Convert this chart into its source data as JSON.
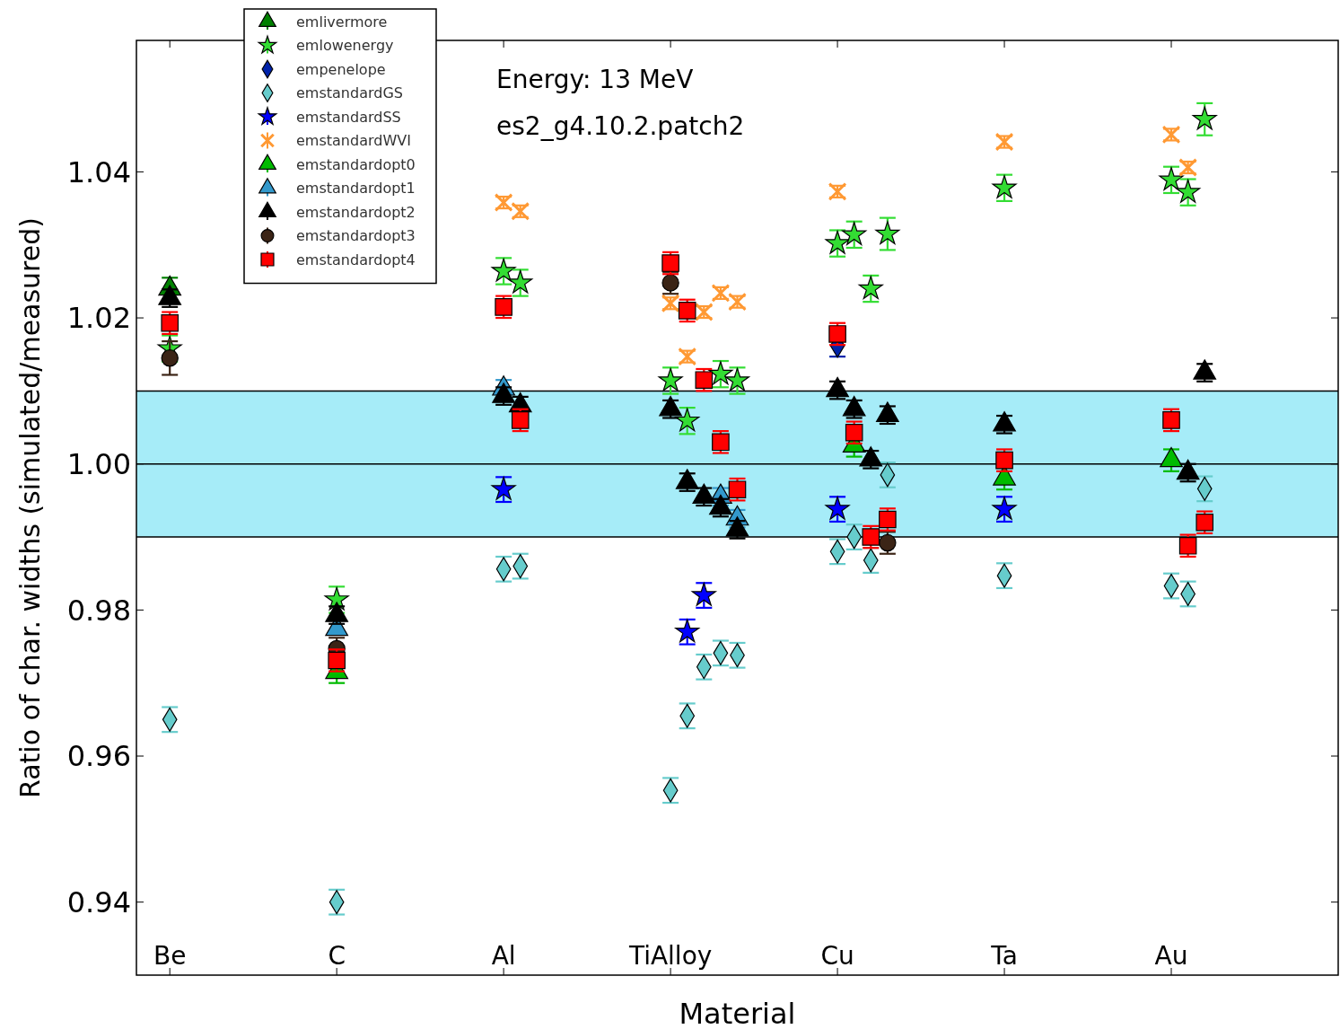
{
  "chart_data": {
    "type": "scatter",
    "annotations": [
      "Energy: 13 MeV",
      "es2_g4.10.2.patch2"
    ],
    "xlabel": "Material",
    "ylabel": "Ratio of char. widths (simulated/measured)",
    "categories": [
      "Be",
      null,
      null,
      null,
      null,
      null,
      null,
      null,
      null,
      null,
      "C",
      null,
      null,
      null,
      null,
      null,
      null,
      null,
      null,
      null,
      "Al",
      null,
      null,
      null,
      null,
      null,
      null,
      null,
      null,
      null,
      "TiAlloy",
      null,
      null,
      null,
      null,
      null,
      null,
      null,
      null,
      null,
      "Cu",
      null,
      null,
      null,
      null,
      null,
      null,
      null,
      null,
      null,
      "Ta",
      null,
      null,
      null,
      null,
      null,
      null,
      null,
      null,
      null,
      "Au",
      null,
      null
    ],
    "ylim": [
      0.93,
      1.058
    ],
    "yticks": [
      0.94,
      0.96,
      0.98,
      {
        "value": 1,
        "label": "1.00"
      },
      1.02,
      1.04
    ],
    "bands": [
      {
        "axis": "y",
        "from": 0.99,
        "to": 1.01,
        "color": "#a6ecf8"
      }
    ],
    "ref_lines": [
      {
        "axis": "y",
        "value": 0.99
      },
      {
        "axis": "y",
        "value": 1
      },
      {
        "axis": "y",
        "value": 1.01
      }
    ],
    "legend": "top left",
    "series": [
      {
        "name": "emlivermore",
        "color": "#008000",
        "marker": "triangle",
        "values": [
          1.024,
          null,
          null,
          null,
          null,
          null,
          null,
          null,
          null,
          null,
          null,
          null,
          null,
          null,
          null,
          null,
          null,
          null,
          null,
          null,
          null,
          null,
          null,
          null,
          null,
          null,
          null,
          null,
          null,
          null,
          null,
          null,
          null,
          null,
          null,
          null,
          null,
          null,
          null,
          null,
          null,
          null,
          null,
          null,
          null,
          null,
          null,
          null,
          null,
          null,
          null,
          null,
          null,
          null,
          null,
          null,
          null,
          null,
          null,
          null,
          null,
          null,
          null
        ],
        "errors": [
          0.0015,
          null,
          null,
          null,
          null,
          null,
          null,
          null,
          null,
          null,
          null,
          null,
          null,
          null,
          null,
          null,
          null,
          null,
          null,
          null,
          null,
          null,
          null,
          null,
          null,
          null,
          null,
          null,
          null,
          null,
          null,
          null,
          null,
          null,
          null,
          null,
          null,
          null,
          null,
          null,
          null,
          null,
          null,
          null,
          null,
          null,
          null,
          null,
          null,
          null,
          null,
          null,
          null,
          null,
          null,
          null,
          null,
          null,
          null,
          null,
          null,
          null,
          null
        ]
      },
      {
        "name": "emlowenergy",
        "color": "#33dd33",
        "marker": "star",
        "values": [
          1.0158,
          null,
          null,
          null,
          null,
          null,
          null,
          null,
          null,
          null,
          0.9814,
          null,
          null,
          null,
          null,
          null,
          null,
          null,
          null,
          null,
          1.0264,
          1.0248,
          null,
          null,
          null,
          null,
          null,
          null,
          null,
          null,
          1.0114,
          1.0059,
          null,
          1.0123,
          1.0114,
          null,
          null,
          null,
          null,
          null,
          1.0302,
          1.0314,
          1.024,
          1.0315,
          null,
          null,
          null,
          null,
          null,
          null,
          1.0378,
          null,
          null,
          null,
          null,
          null,
          null,
          null,
          null,
          null,
          1.0389,
          1.0372,
          1.0472
        ],
        "errors": [
          0.0018,
          null,
          null,
          null,
          null,
          null,
          null,
          null,
          null,
          null,
          0.0018,
          null,
          null,
          null,
          null,
          null,
          null,
          null,
          null,
          null,
          0.0018,
          0.0018,
          null,
          null,
          null,
          null,
          null,
          null,
          null,
          null,
          0.0018,
          0.0018,
          null,
          0.0018,
          0.0018,
          null,
          null,
          null,
          null,
          null,
          0.0018,
          0.0018,
          0.0018,
          0.0022,
          null,
          null,
          null,
          null,
          null,
          null,
          0.0018,
          null,
          null,
          null,
          null,
          null,
          null,
          null,
          null,
          null,
          0.0018,
          0.0018,
          0.0022
        ]
      },
      {
        "name": "empenelope",
        "color": "#0022aa",
        "marker": "diamond",
        "values": [
          null,
          null,
          null,
          null,
          null,
          null,
          null,
          null,
          null,
          null,
          null,
          null,
          null,
          null,
          null,
          null,
          null,
          null,
          null,
          null,
          null,
          null,
          null,
          null,
          null,
          null,
          null,
          null,
          null,
          null,
          null,
          null,
          null,
          null,
          null,
          null,
          null,
          null,
          null,
          null,
          1.0162,
          null,
          null,
          null,
          null,
          null,
          null,
          null,
          null,
          null,
          null,
          null,
          null,
          null,
          null,
          null,
          null,
          null,
          null,
          null,
          null,
          null,
          null
        ],
        "errors": [
          null,
          null,
          null,
          null,
          null,
          null,
          null,
          null,
          null,
          null,
          null,
          null,
          null,
          null,
          null,
          null,
          null,
          null,
          null,
          null,
          null,
          null,
          null,
          null,
          null,
          null,
          null,
          null,
          null,
          null,
          null,
          null,
          null,
          null,
          null,
          null,
          null,
          null,
          null,
          null,
          0.0015,
          null,
          null,
          null,
          null,
          null,
          null,
          null,
          null,
          null,
          null,
          null,
          null,
          null,
          null,
          null,
          null,
          null,
          null,
          null,
          null,
          null,
          null
        ]
      },
      {
        "name": "emstandardGS",
        "color": "#66cccc",
        "marker": "diamond",
        "values": [
          0.965,
          null,
          null,
          null,
          null,
          null,
          null,
          null,
          null,
          null,
          0.94,
          null,
          null,
          null,
          null,
          null,
          null,
          null,
          null,
          null,
          0.9856,
          0.986,
          null,
          null,
          null,
          null,
          null,
          null,
          null,
          null,
          0.9553,
          0.9655,
          0.9722,
          0.9741,
          0.9738,
          null,
          null,
          null,
          null,
          null,
          0.988,
          0.99,
          0.9868,
          0.9985,
          null,
          null,
          null,
          null,
          null,
          null,
          0.9847,
          null,
          null,
          null,
          null,
          null,
          null,
          null,
          null,
          null,
          0.9833,
          0.9822,
          0.9966
        ],
        "errors": [
          0.0017,
          null,
          null,
          null,
          null,
          null,
          null,
          null,
          null,
          null,
          0.0017,
          null,
          null,
          null,
          null,
          null,
          null,
          null,
          null,
          null,
          0.0017,
          0.0017,
          null,
          null,
          null,
          null,
          null,
          null,
          null,
          null,
          0.0017,
          0.0017,
          0.0017,
          0.0017,
          0.0017,
          null,
          null,
          null,
          null,
          null,
          0.0017,
          0.0017,
          0.0017,
          0.0017,
          null,
          null,
          null,
          null,
          null,
          null,
          0.0017,
          null,
          null,
          null,
          null,
          null,
          null,
          null,
          null,
          null,
          0.0017,
          0.0017,
          0.0017
        ]
      },
      {
        "name": "emstandardSS",
        "color": "#0000ff",
        "marker": "star",
        "values": [
          null,
          null,
          null,
          null,
          null,
          null,
          null,
          null,
          null,
          null,
          null,
          null,
          null,
          null,
          null,
          null,
          null,
          null,
          null,
          null,
          0.9965,
          null,
          null,
          null,
          null,
          null,
          null,
          null,
          null,
          null,
          null,
          0.977,
          0.982,
          null,
          null,
          null,
          null,
          null,
          null,
          null,
          0.9938,
          null,
          null,
          null,
          null,
          null,
          null,
          null,
          null,
          null,
          0.9938,
          null,
          null,
          null,
          null,
          null,
          null,
          null,
          null,
          null,
          null,
          null,
          null
        ],
        "errors": [
          null,
          null,
          null,
          null,
          null,
          null,
          null,
          null,
          null,
          null,
          null,
          null,
          null,
          null,
          null,
          null,
          null,
          null,
          null,
          null,
          0.0017,
          null,
          null,
          null,
          null,
          null,
          null,
          null,
          null,
          null,
          null,
          0.0017,
          0.0017,
          null,
          null,
          null,
          null,
          null,
          null,
          null,
          0.0017,
          null,
          null,
          null,
          null,
          null,
          null,
          null,
          null,
          null,
          0.0017,
          null,
          null,
          null,
          null,
          null,
          null,
          null,
          null,
          null,
          null,
          null,
          null
        ]
      },
      {
        "name": "emstandardWVI",
        "color": "#ff9933",
        "marker": "cross",
        "values": [
          null,
          null,
          null,
          null,
          null,
          null,
          null,
          null,
          null,
          null,
          null,
          null,
          null,
          null,
          null,
          null,
          null,
          null,
          null,
          null,
          1.0358,
          1.0346,
          null,
          null,
          null,
          null,
          null,
          null,
          null,
          null,
          1.022,
          1.0147,
          1.0208,
          1.0234,
          1.0222,
          null,
          null,
          null,
          null,
          null,
          1.0373,
          null,
          null,
          null,
          null,
          null,
          null,
          null,
          null,
          null,
          1.0441,
          null,
          null,
          null,
          null,
          null,
          null,
          null,
          null,
          null,
          1.0451,
          1.0406,
          null
        ],
        "errors": [
          null,
          null,
          null,
          null,
          null,
          null,
          null,
          null,
          null,
          null,
          null,
          null,
          null,
          null,
          null,
          null,
          null,
          null,
          null,
          null,
          0.0008,
          0.0008,
          null,
          null,
          null,
          null,
          null,
          null,
          null,
          null,
          0.0008,
          0.0008,
          0.0008,
          0.0008,
          0.0008,
          null,
          null,
          null,
          null,
          null,
          0.0008,
          null,
          null,
          null,
          null,
          null,
          null,
          null,
          null,
          null,
          0.0008,
          null,
          null,
          null,
          null,
          null,
          null,
          null,
          null,
          null,
          0.0008,
          0.0008,
          null
        ]
      },
      {
        "name": "emstandardopt0",
        "color": "#00bb00",
        "marker": "triangle",
        "values": [
          null,
          null,
          null,
          null,
          null,
          null,
          null,
          null,
          null,
          null,
          0.9715,
          null,
          null,
          null,
          null,
          null,
          null,
          null,
          null,
          null,
          null,
          null,
          null,
          null,
          null,
          null,
          null,
          null,
          null,
          null,
          null,
          null,
          null,
          null,
          null,
          null,
          null,
          null,
          null,
          null,
          null,
          1.0025,
          null,
          null,
          null,
          null,
          null,
          null,
          null,
          null,
          0.998,
          null,
          null,
          null,
          null,
          null,
          null,
          null,
          null,
          null,
          1.0005,
          null,
          null
        ],
        "errors": [
          null,
          null,
          null,
          null,
          null,
          null,
          null,
          null,
          null,
          null,
          0.0015,
          null,
          null,
          null,
          null,
          null,
          null,
          null,
          null,
          null,
          null,
          null,
          null,
          null,
          null,
          null,
          null,
          null,
          null,
          null,
          null,
          null,
          null,
          null,
          null,
          null,
          null,
          null,
          null,
          null,
          null,
          0.0015,
          null,
          null,
          null,
          null,
          null,
          null,
          null,
          null,
          0.0015,
          null,
          null,
          null,
          null,
          null,
          null,
          null,
          null,
          null,
          0.0015,
          null,
          null
        ]
      },
      {
        "name": "emstandardopt1",
        "color": "#3399cc",
        "marker": "triangle",
        "values": [
          null,
          null,
          null,
          null,
          null,
          null,
          null,
          null,
          null,
          null,
          0.9774,
          null,
          null,
          null,
          null,
          null,
          null,
          null,
          null,
          null,
          1.0103,
          null,
          null,
          null,
          null,
          null,
          null,
          null,
          null,
          null,
          null,
          null,
          null,
          0.9955,
          0.9925,
          null,
          null,
          null,
          null,
          null,
          null,
          null,
          null,
          null,
          null,
          null,
          null,
          null,
          null,
          null,
          null,
          null,
          null,
          null,
          null,
          null,
          null,
          null,
          null,
          null,
          null,
          null,
          null
        ],
        "errors": [
          null,
          null,
          null,
          null,
          null,
          null,
          null,
          null,
          null,
          null,
          null,
          null,
          null,
          null,
          null,
          null,
          null,
          null,
          null,
          null,
          0.0012,
          null,
          null,
          null,
          null,
          null,
          null,
          null,
          null,
          null,
          null,
          null,
          null,
          0.0012,
          0.0012,
          null,
          null,
          null,
          null,
          null,
          null,
          null,
          null,
          null,
          null,
          null,
          null,
          null,
          null,
          null,
          null,
          null,
          null,
          null,
          null,
          null,
          null,
          null,
          null,
          null,
          null,
          null,
          null
        ]
      },
      {
        "name": "emstandardopt2",
        "color": "#000000",
        "marker": "triangle",
        "values": [
          1.0227,
          null,
          null,
          null,
          null,
          null,
          null,
          null,
          null,
          null,
          0.9793,
          null,
          null,
          null,
          null,
          null,
          null,
          null,
          null,
          null,
          1.0093,
          1.008,
          null,
          null,
          null,
          null,
          null,
          null,
          null,
          null,
          1.0075,
          0.9975,
          0.9955,
          0.994,
          0.991,
          null,
          null,
          null,
          null,
          null,
          1.0101,
          1.0075,
          1.0006,
          1.0067,
          null,
          null,
          null,
          null,
          null,
          null,
          1.0054,
          null,
          null,
          null,
          null,
          null,
          null,
          null,
          null,
          null,
          null,
          0.9988,
          1.0125
        ],
        "errors": [
          0.0012,
          null,
          null,
          null,
          null,
          null,
          null,
          null,
          null,
          null,
          0.0012,
          null,
          null,
          null,
          null,
          null,
          null,
          null,
          null,
          null,
          0.0012,
          0.0012,
          null,
          null,
          null,
          null,
          null,
          null,
          null,
          null,
          0.0012,
          0.0012,
          0.0012,
          0.0012,
          0.0012,
          null,
          null,
          null,
          null,
          null,
          0.0012,
          0.0012,
          0.0012,
          0.0012,
          null,
          null,
          null,
          null,
          null,
          null,
          0.0012,
          null,
          null,
          null,
          null,
          null,
          null,
          null,
          null,
          null,
          null,
          0.0012,
          0.0012
        ]
      },
      {
        "name": "emstandardopt3",
        "color": "#3b2416",
        "marker": "circle",
        "values": [
          1.0145,
          null,
          null,
          null,
          null,
          null,
          null,
          null,
          null,
          null,
          0.9747,
          null,
          null,
          null,
          null,
          null,
          null,
          null,
          null,
          null,
          null,
          null,
          null,
          null,
          null,
          null,
          null,
          null,
          null,
          null,
          1.0248,
          null,
          null,
          null,
          null,
          null,
          null,
          null,
          null,
          null,
          null,
          null,
          null,
          0.9892,
          null,
          null,
          null,
          null,
          null,
          null,
          null,
          null,
          null,
          null,
          null,
          null,
          null,
          null,
          null,
          null,
          null,
          null,
          null
        ],
        "errors": [
          0.0023,
          null,
          null,
          null,
          null,
          null,
          null,
          null,
          null,
          null,
          0.0015,
          null,
          null,
          null,
          null,
          null,
          null,
          null,
          null,
          null,
          null,
          null,
          null,
          null,
          null,
          null,
          null,
          null,
          null,
          null,
          0.0015,
          null,
          null,
          null,
          null,
          null,
          null,
          null,
          null,
          null,
          null,
          null,
          null,
          0.0015,
          null,
          null,
          null,
          null,
          null,
          null,
          null,
          null,
          null,
          null,
          null,
          null,
          null,
          null,
          null,
          null,
          null,
          null,
          null
        ]
      },
      {
        "name": "emstandardopt4",
        "color": "#ff0000",
        "marker": "square",
        "values": [
          1.0193,
          null,
          null,
          null,
          null,
          null,
          null,
          null,
          null,
          null,
          0.9731,
          null,
          null,
          null,
          null,
          null,
          null,
          null,
          null,
          null,
          1.0215,
          1.006,
          null,
          null,
          null,
          null,
          null,
          null,
          null,
          null,
          1.0275,
          1.021,
          1.0115,
          1.003,
          0.9965,
          null,
          null,
          null,
          null,
          null,
          1.0178,
          1.0043,
          0.99,
          0.9924,
          null,
          null,
          null,
          null,
          null,
          null,
          1.0005,
          null,
          null,
          null,
          null,
          null,
          null,
          null,
          null,
          null,
          1.006,
          0.9888,
          0.992
        ],
        "errors": [
          0.0015,
          null,
          null,
          null,
          null,
          null,
          null,
          null,
          null,
          null,
          0.0015,
          null,
          null,
          null,
          null,
          null,
          null,
          null,
          null,
          null,
          0.0015,
          0.0015,
          null,
          null,
          null,
          null,
          null,
          null,
          null,
          null,
          0.0015,
          0.0015,
          0.0015,
          0.0015,
          0.0015,
          null,
          null,
          null,
          null,
          null,
          0.0015,
          0.0015,
          0.0015,
          0.0015,
          null,
          null,
          null,
          null,
          null,
          null,
          0.0015,
          null,
          null,
          null,
          null,
          null,
          null,
          null,
          null,
          null,
          0.0015,
          0.0015,
          0.0015
        ]
      }
    ]
  }
}
